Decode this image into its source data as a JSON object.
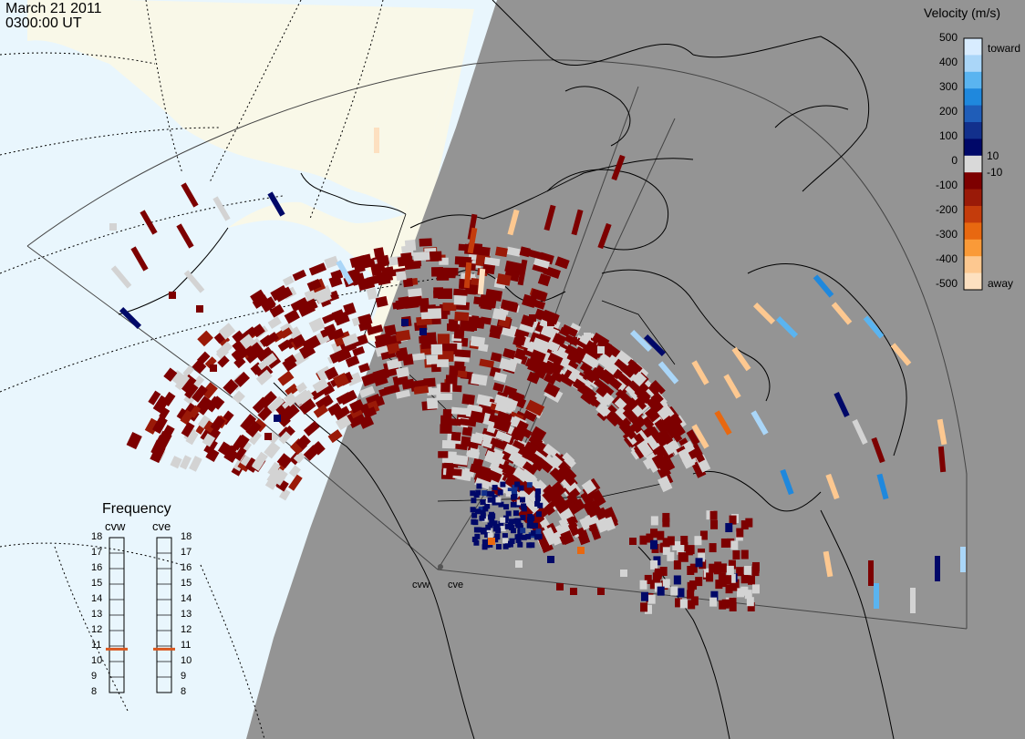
{
  "header": {
    "date": "March 21 2011",
    "time": "0300:00 UT"
  },
  "colorbar": {
    "title": "Velocity (m/s)",
    "ticks": [
      "500",
      "400",
      "300",
      "200",
      "100",
      "10",
      "0",
      "-10",
      "-100",
      "-200",
      "-300",
      "-400",
      "-500"
    ],
    "toward_label": "toward",
    "away_label": "away",
    "colors": [
      "#d8ecff",
      "#aad6f8",
      "#5ab4f0",
      "#1f88dd",
      "#1f5db8",
      "#12308c",
      "#000868",
      "#d9d9d9",
      "#7d0000",
      "#9a1a08",
      "#c43c0c",
      "#e86810",
      "#fa9a38",
      "#fdc890",
      "#fde0c0"
    ]
  },
  "frequency_panel": {
    "title": "Frequency",
    "radars": [
      {
        "code": "cvw",
        "freq_mhz": 10.8
      },
      {
        "code": "cve",
        "freq_mhz": 10.8
      }
    ],
    "scale": [
      "18",
      "17",
      "16",
      "15",
      "14",
      "13",
      "12",
      "11",
      "10",
      "9",
      "8"
    ],
    "marker_color": "#d9571e"
  },
  "map": {
    "night_color": "#949494",
    "ocean_color": "#e9f6fd",
    "land_color": "#f9f8e8",
    "radar_labels": [
      "cvw",
      "cve"
    ],
    "ground_scatter_color": "#d3d3d3"
  }
}
